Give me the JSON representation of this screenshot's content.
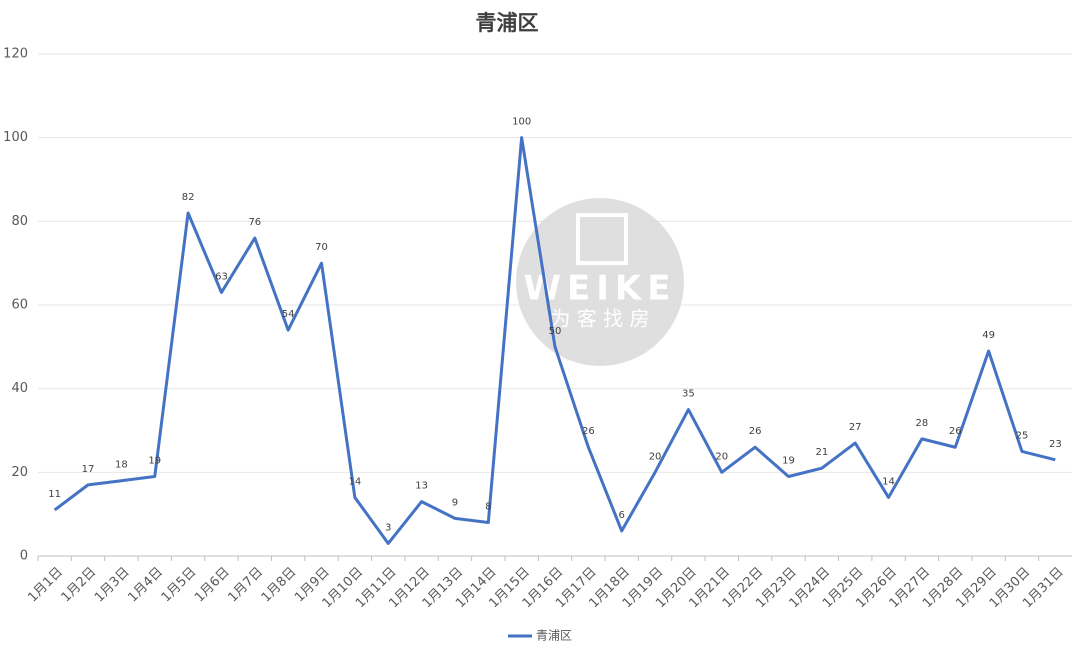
{
  "chart_data": {
    "type": "line",
    "title": "青浦区",
    "categories": [
      "1月1日",
      "1月2日",
      "1月3日",
      "1月4日",
      "1月5日",
      "1月6日",
      "1月7日",
      "1月8日",
      "1月9日",
      "1月10日",
      "1月11日",
      "1月12日",
      "1月13日",
      "1月14日",
      "1月15日",
      "1月16日",
      "1月17日",
      "1月18日",
      "1月19日",
      "1月20日",
      "1月21日",
      "1月22日",
      "1月23日",
      "1月24日",
      "1月25日",
      "1月26日",
      "1月27日",
      "1月28日",
      "1月29日",
      "1月30日",
      "1月31日"
    ],
    "series": [
      {
        "name": "青浦区",
        "color": "#4472c4",
        "values": [
          11,
          17,
          18,
          19,
          82,
          63,
          76,
          54,
          70,
          14,
          3,
          13,
          9,
          8,
          100,
          50,
          26,
          6,
          20,
          35,
          20,
          26,
          19,
          21,
          27,
          14,
          28,
          26,
          49,
          25,
          23
        ]
      }
    ],
    "ylim": [
      0,
      120
    ],
    "yticks": [
      0,
      20,
      40,
      60,
      80,
      100,
      120
    ],
    "grid": true,
    "legend": "bottom"
  },
  "watermark": {
    "text": "WEIKE",
    "subtext": "为 客 找 房"
  }
}
